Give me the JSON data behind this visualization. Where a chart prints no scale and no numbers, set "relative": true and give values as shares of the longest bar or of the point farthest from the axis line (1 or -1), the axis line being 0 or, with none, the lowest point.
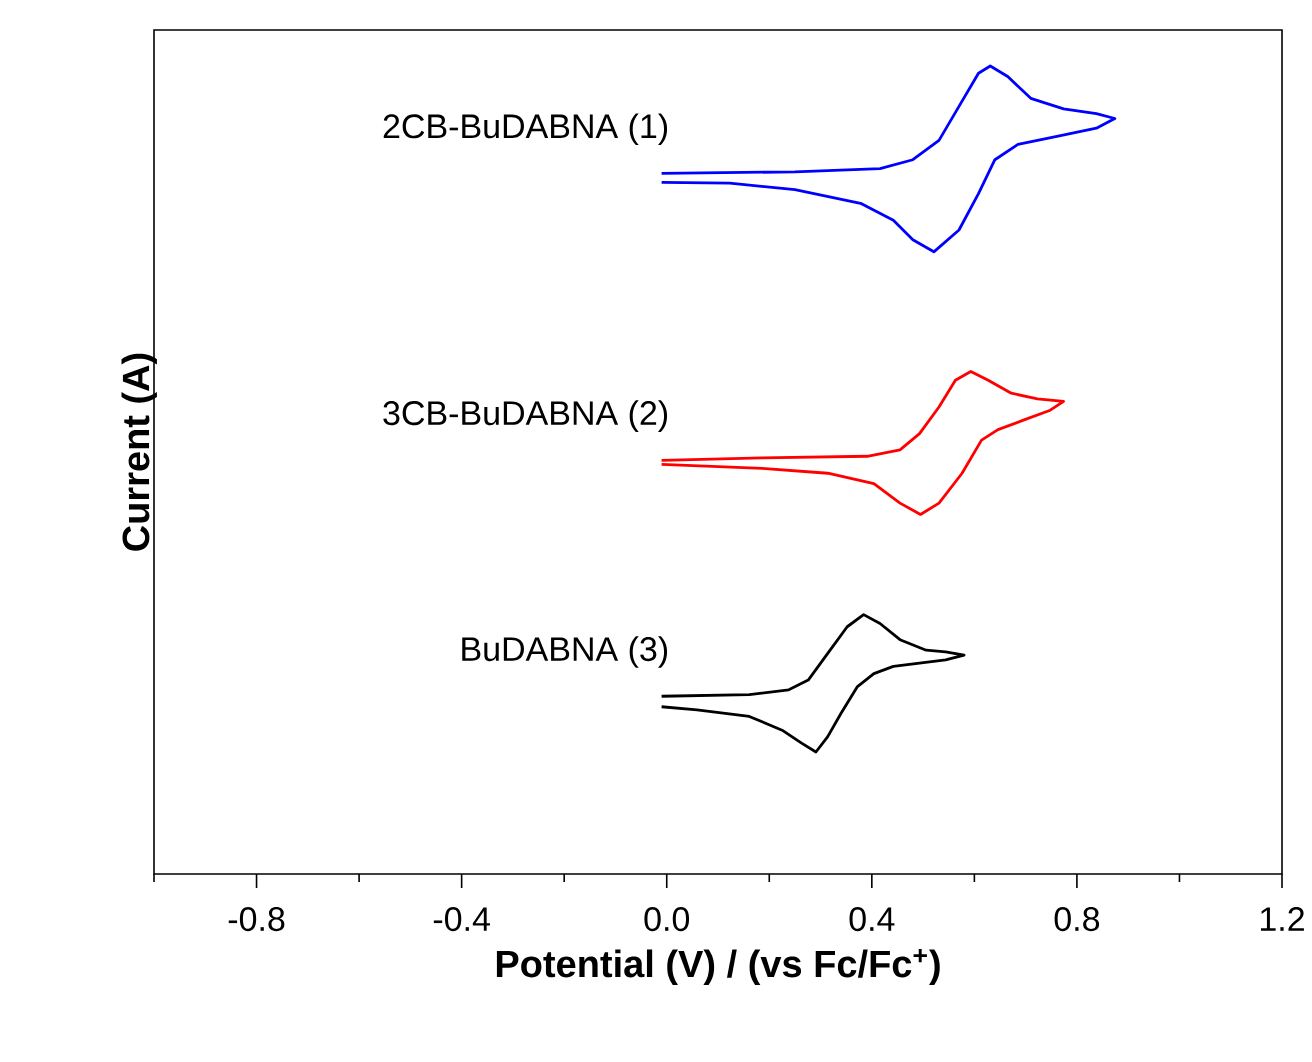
{
  "chart_data": {
    "type": "line",
    "relative": true,
    "xlabel": "Potential (V) / (vs Fc/Fc$^{+}$)",
    "ylabel": "Current (A)",
    "xlim": [
      -1.0,
      1.2
    ],
    "xticks": [
      {
        "value": -1.0,
        "label": null
      },
      -0.8,
      {
        "value": -0.6,
        "label": null
      },
      -0.4,
      {
        "value": -0.2,
        "label": null
      },
      {
        "value": 0,
        "label": "0.0"
      },
      {
        "value": 0.2,
        "label": null
      },
      0.4,
      {
        "value": 0.6,
        "label": null
      },
      0.8,
      {
        "value": 1.0,
        "label": null
      },
      1.2
    ],
    "series": [
      {
        "name": "2CB-BuDABNA (1)",
        "color": "#0000ff",
        "x": [
          -0.01,
          0.25,
          0.416,
          0.48,
          0.531,
          0.57,
          0.608,
          0.631,
          0.665,
          0.71,
          0.774,
          0.838,
          0.874,
          0.838,
          0.761,
          0.685,
          0.64,
          0.608,
          0.57,
          0.521,
          0.48,
          0.442,
          0.378,
          0.25,
          0.123,
          -0.01
        ],
        "values": [
          0.867,
          0.869,
          0.873,
          0.884,
          0.908,
          0.95,
          0.991,
          1.0,
          0.987,
          0.96,
          0.947,
          0.941,
          0.935,
          0.923,
          0.913,
          0.903,
          0.884,
          0.842,
          0.797,
          0.77,
          0.785,
          0.809,
          0.83,
          0.847,
          0.855,
          0.856
        ]
      },
      {
        "name": "3CB-BuDABNA (2)",
        "color": "#ff0000",
        "x": [
          -0.01,
          0.186,
          0.391,
          0.455,
          0.493,
          0.531,
          0.563,
          0.593,
          0.627,
          0.672,
          0.723,
          0.774,
          0.748,
          0.697,
          0.646,
          0.614,
          0.576,
          0.531,
          0.495,
          0.455,
          0.404,
          0.314,
          0.186,
          -0.01
        ],
        "values": [
          0.512,
          0.515,
          0.517,
          0.525,
          0.545,
          0.578,
          0.611,
          0.622,
          0.611,
          0.595,
          0.588,
          0.585,
          0.574,
          0.562,
          0.55,
          0.537,
          0.496,
          0.459,
          0.445,
          0.459,
          0.483,
          0.496,
          0.502,
          0.507
        ]
      },
      {
        "name": "BuDABNA (3)",
        "color": "#000000",
        "x": [
          -0.01,
          0.161,
          0.238,
          0.276,
          0.314,
          0.352,
          0.384,
          0.416,
          0.455,
          0.506,
          0.544,
          0.58,
          0.544,
          0.493,
          0.442,
          0.404,
          0.372,
          0.34,
          0.314,
          0.291,
          0.263,
          0.225,
          0.161,
          0.059,
          -0.01
        ],
        "values": [
          0.22,
          0.222,
          0.228,
          0.24,
          0.273,
          0.306,
          0.321,
          0.31,
          0.29,
          0.277,
          0.275,
          0.271,
          0.265,
          0.261,
          0.257,
          0.248,
          0.232,
          0.199,
          0.17,
          0.151,
          0.162,
          0.178,
          0.195,
          0.203,
          0.207
        ]
      }
    ]
  }
}
